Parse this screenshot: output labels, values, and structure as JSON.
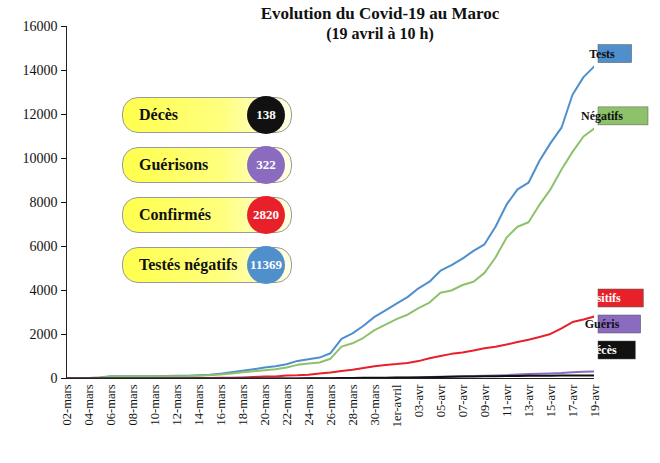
{
  "chart_data": {
    "type": "line",
    "title": "Evolution du Covid-19 au Maroc",
    "subtitle": "(19 avril à 10 h)",
    "categories": [
      "02-mars",
      null,
      "04-mars",
      null,
      "06-mars",
      null,
      "08-mars",
      null,
      "10-mars",
      null,
      "12-mars",
      null,
      "14-mars",
      null,
      "16-mars",
      null,
      "18-mars",
      null,
      "20-mars",
      null,
      "22-mars",
      null,
      "24-mars",
      null,
      "26-mars",
      null,
      "28-mars",
      null,
      "30-mars",
      null,
      "1er-avril",
      null,
      "03-avr",
      null,
      "05-avr",
      null,
      "07-avr",
      null,
      "09-avr",
      null,
      "11-avr",
      null,
      "13-avr",
      null,
      "15-avr",
      null,
      "17-avr",
      null,
      "19-avr"
    ],
    "series": [
      {
        "name": "Tests",
        "color": "#4f8fcc",
        "values": [
          0,
          0,
          20,
          50,
          100,
          100,
          100,
          100,
          100,
          110,
          120,
          130,
          150,
          170,
          220,
          280,
          350,
          420,
          500,
          560,
          650,
          800,
          880,
          950,
          1150,
          1800,
          2050,
          2400,
          2800,
          3100,
          3400,
          3700,
          4100,
          4400,
          4900,
          5150,
          5450,
          5800,
          6100,
          6900,
          7900,
          8600,
          8900,
          9900,
          10700,
          11400,
          12900,
          13700,
          14200
        ]
      },
      {
        "name": "Négatifs",
        "color": "#8dc26b",
        "values": [
          0,
          0,
          15,
          40,
          80,
          90,
          90,
          95,
          95,
          100,
          105,
          110,
          130,
          150,
          180,
          230,
          280,
          330,
          380,
          420,
          500,
          620,
          680,
          730,
          900,
          1450,
          1600,
          1850,
          2200,
          2450,
          2700,
          2900,
          3200,
          3450,
          3900,
          4000,
          4250,
          4400,
          4800,
          5500,
          6400,
          6900,
          7100,
          7900,
          8600,
          9500,
          10300,
          11000,
          11369
        ]
      },
      {
        "name": "Positifs",
        "color": "#e8202a",
        "values": [
          0,
          1,
          1,
          2,
          2,
          2,
          2,
          2,
          2,
          6,
          6,
          7,
          18,
          28,
          29,
          38,
          49,
          63,
          86,
          96,
          134,
          143,
          170,
          225,
          275,
          345,
          402,
          479,
          556,
          617,
          654,
          708,
          791,
          919,
          1021,
          1120,
          1184,
          1275,
          1374,
          1448,
          1545,
          1661,
          1763,
          1888,
          2024,
          2283,
          2564,
          2685,
          2820
        ]
      },
      {
        "name": "Guéris",
        "color": "#8a6bbf",
        "values": [
          0,
          0,
          0,
          0,
          0,
          0,
          0,
          0,
          0,
          1,
          1,
          1,
          1,
          1,
          1,
          1,
          2,
          2,
          3,
          3,
          4,
          5,
          6,
          11,
          11,
          13,
          15,
          15,
          24,
          28,
          29,
          34,
          57,
          66,
          76,
          93,
          97,
          109,
          121,
          138,
          152,
          177,
          203,
          217,
          229,
          249,
          281,
          303,
          322
        ]
      },
      {
        "name": "Décès",
        "color": "#111111",
        "values": [
          0,
          0,
          0,
          0,
          0,
          0,
          0,
          0,
          1,
          1,
          1,
          1,
          1,
          1,
          2,
          2,
          3,
          3,
          4,
          4,
          4,
          5,
          6,
          10,
          11,
          23,
          25,
          33,
          36,
          39,
          44,
          44,
          48,
          59,
          70,
          80,
          93,
          93,
          97,
          107,
          111,
          118,
          126,
          127,
          130,
          135,
          136,
          137,
          138
        ]
      }
    ],
    "ylim": [
      0,
      16000
    ],
    "yticks": [
      0,
      2000,
      4000,
      6000,
      8000,
      10000,
      12000,
      14000,
      16000
    ],
    "grid": false,
    "annotations": [
      {
        "label": "Décès",
        "value": 138,
        "color": "#111111"
      },
      {
        "label": "Guérisons",
        "value": 322,
        "color": "#8a6bbf"
      },
      {
        "label": "Confirmés",
        "value": 2820,
        "color": "#e8202a"
      },
      {
        "label": "Testés négatifs",
        "value": 11369,
        "color": "#4f8fcc"
      }
    ]
  }
}
